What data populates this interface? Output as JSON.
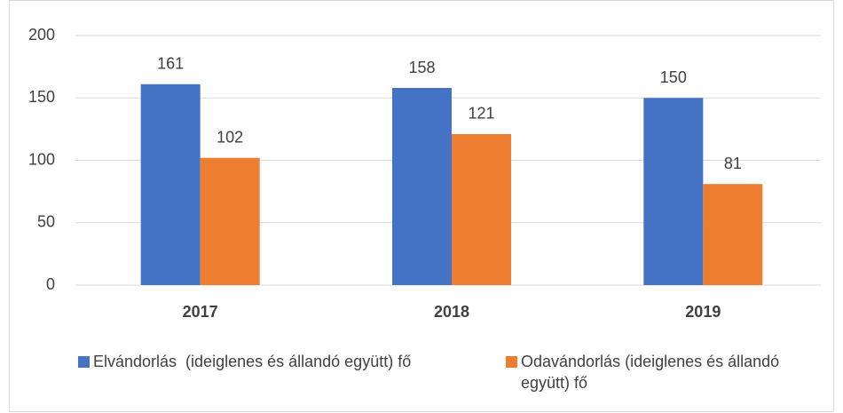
{
  "chart_data": {
    "type": "bar",
    "categories": [
      "2017",
      "2018",
      "2019"
    ],
    "series": [
      {
        "name": "Elvándorlás  (ideiglenes és állandó együtt) fő",
        "color": "#4472c4",
        "values": [
          161,
          158,
          150
        ]
      },
      {
        "name": "Odavándorlás (ideiglenes és állandó együtt) fő",
        "color": "#ed7d31",
        "values": [
          102,
          121,
          81
        ]
      }
    ],
    "ylim": [
      0,
      200
    ],
    "yticks": [
      0,
      50,
      100,
      150,
      200
    ],
    "grid": true,
    "legend": "bottom"
  }
}
